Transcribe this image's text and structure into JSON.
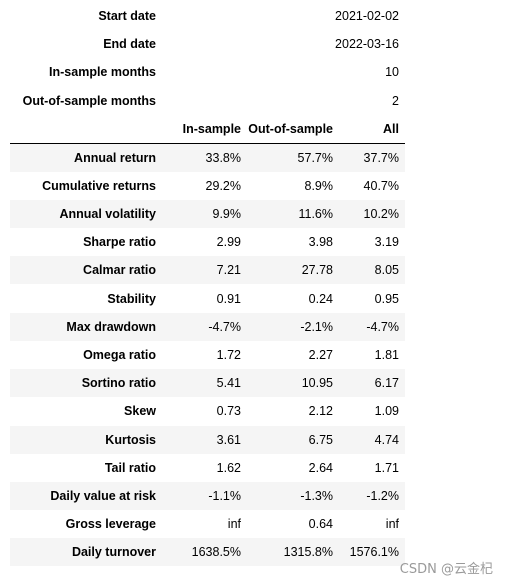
{
  "meta_rows": [
    {
      "label": "Start date",
      "value": "2021-02-02"
    },
    {
      "label": "End date",
      "value": "2022-03-16"
    },
    {
      "label": "In-sample months",
      "value": "10"
    },
    {
      "label": "Out-of-sample months",
      "value": "2"
    }
  ],
  "columns": [
    "In-sample",
    "Out-of-sample",
    "All"
  ],
  "rows": [
    {
      "label": "Annual return",
      "values": [
        "33.8%",
        "57.7%",
        "37.7%"
      ]
    },
    {
      "label": "Cumulative returns",
      "values": [
        "29.2%",
        "8.9%",
        "40.7%"
      ]
    },
    {
      "label": "Annual volatility",
      "values": [
        "9.9%",
        "11.6%",
        "10.2%"
      ]
    },
    {
      "label": "Sharpe ratio",
      "values": [
        "2.99",
        "3.98",
        "3.19"
      ]
    },
    {
      "label": "Calmar ratio",
      "values": [
        "7.21",
        "27.78",
        "8.05"
      ]
    },
    {
      "label": "Stability",
      "values": [
        "0.91",
        "0.24",
        "0.95"
      ]
    },
    {
      "label": "Max drawdown",
      "values": [
        "-4.7%",
        "-2.1%",
        "-4.7%"
      ]
    },
    {
      "label": "Omega ratio",
      "values": [
        "1.72",
        "2.27",
        "1.81"
      ]
    },
    {
      "label": "Sortino ratio",
      "values": [
        "5.41",
        "10.95",
        "6.17"
      ]
    },
    {
      "label": "Skew",
      "values": [
        "0.73",
        "2.12",
        "1.09"
      ]
    },
    {
      "label": "Kurtosis",
      "values": [
        "3.61",
        "6.75",
        "4.74"
      ]
    },
    {
      "label": "Tail ratio",
      "values": [
        "1.62",
        "2.64",
        "1.71"
      ]
    },
    {
      "label": "Daily value at risk",
      "values": [
        "-1.1%",
        "-1.3%",
        "-1.2%"
      ]
    },
    {
      "label": "Gross leverage",
      "values": [
        "inf",
        "0.64",
        "inf"
      ]
    },
    {
      "label": "Daily turnover",
      "values": [
        "1638.5%",
        "1315.8%",
        "1576.1%"
      ]
    }
  ],
  "watermark": "CSDN @云金杞"
}
